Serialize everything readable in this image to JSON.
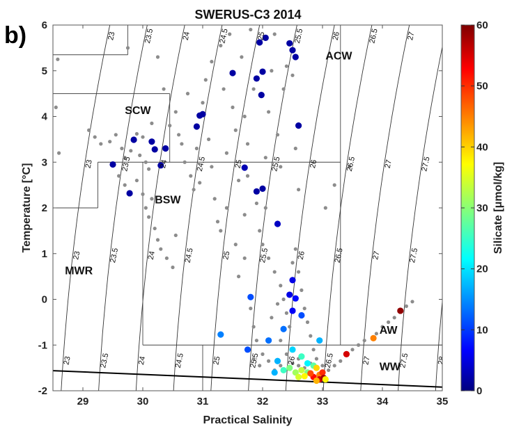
{
  "panel_label": "b)",
  "chart_data": {
    "type": "scatter",
    "title": "SWERUS-C3 2014",
    "xlabel": "Practical Salinity",
    "ylabel": "Temperature [°C]",
    "xlim": [
      28.5,
      35
    ],
    "ylim": [
      -2,
      6
    ],
    "x_ticks": [
      "29",
      "30",
      "31",
      "32",
      "33",
      "34",
      "35"
    ],
    "y_ticks": [
      "-2",
      "-1",
      "0",
      "1",
      "2",
      "3",
      "4",
      "5",
      "6"
    ],
    "colorbar": {
      "label": "Silicate [μmol/kg]",
      "range": [
        0,
        60
      ],
      "ticks": [
        "0",
        "10",
        "20",
        "30",
        "40",
        "50",
        "60"
      ],
      "colormap": "jet"
    },
    "isopycnals": [
      {
        "label": "23",
        "sigma": 23
      },
      {
        "label": "23.5",
        "sigma": 23.5
      },
      {
        "label": "24",
        "sigma": 24
      },
      {
        "label": "24.5",
        "sigma": 24.5
      },
      {
        "label": "25",
        "sigma": 25
      },
      {
        "label": "25.5",
        "sigma": 25.5
      },
      {
        "label": "26",
        "sigma": 26
      },
      {
        "label": "26.5",
        "sigma": 26.5
      },
      {
        "label": "27",
        "sigma": 27
      },
      {
        "label": "27.5",
        "sigma": 27.5
      },
      {
        "label": "28",
        "sigma": 28
      }
    ],
    "freezing_line": {
      "x": [
        28.5,
        35
      ],
      "y": [
        -1.56,
        -1.92
      ]
    },
    "water_mass_labels": [
      {
        "text": "ACW",
        "x": 33.05,
        "y": 5.25
      },
      {
        "text": "SCW",
        "x": 29.7,
        "y": 4.05
      },
      {
        "text": "BSW",
        "x": 30.2,
        "y": 2.1
      },
      {
        "text": "MWR",
        "x": 28.7,
        "y": 0.55
      },
      {
        "text": "AW",
        "x": 33.95,
        "y": -0.75
      },
      {
        "text": "WW",
        "x": 33.95,
        "y": -1.55
      }
    ],
    "colored_points": [
      {
        "x": 32.05,
        "y": 5.72,
        "si": 2
      },
      {
        "x": 31.95,
        "y": 5.62,
        "si": 2
      },
      {
        "x": 32.45,
        "y": 5.6,
        "si": 2
      },
      {
        "x": 32.5,
        "y": 5.45,
        "si": 2
      },
      {
        "x": 32.55,
        "y": 5.3,
        "si": 2
      },
      {
        "x": 32.0,
        "y": 4.98,
        "si": 2
      },
      {
        "x": 31.5,
        "y": 4.95,
        "si": 2
      },
      {
        "x": 31.9,
        "y": 4.83,
        "si": 2
      },
      {
        "x": 31.98,
        "y": 4.47,
        "si": 2
      },
      {
        "x": 31.0,
        "y": 4.05,
        "si": 2
      },
      {
        "x": 30.95,
        "y": 4.02,
        "si": 2
      },
      {
        "x": 32.6,
        "y": 3.8,
        "si": 2
      },
      {
        "x": 30.9,
        "y": 3.78,
        "si": 2
      },
      {
        "x": 29.85,
        "y": 3.49,
        "si": 2
      },
      {
        "x": 30.15,
        "y": 3.45,
        "si": 2
      },
      {
        "x": 30.2,
        "y": 3.28,
        "si": 2
      },
      {
        "x": 30.38,
        "y": 3.3,
        "si": 2
      },
      {
        "x": 29.5,
        "y": 2.95,
        "si": 2
      },
      {
        "x": 31.7,
        "y": 2.88,
        "si": 3
      },
      {
        "x": 30.3,
        "y": 2.93,
        "si": 2
      },
      {
        "x": 32.0,
        "y": 2.42,
        "si": 2
      },
      {
        "x": 31.9,
        "y": 2.36,
        "si": 2
      },
      {
        "x": 29.78,
        "y": 2.32,
        "si": 2
      },
      {
        "x": 32.25,
        "y": 1.65,
        "si": 4
      },
      {
        "x": 32.5,
        "y": 0.42,
        "si": 6
      },
      {
        "x": 32.45,
        "y": 0.1,
        "si": 6
      },
      {
        "x": 32.55,
        "y": 0.02,
        "si": 8
      },
      {
        "x": 31.8,
        "y": 0.05,
        "si": 12
      },
      {
        "x": 32.5,
        "y": -0.25,
        "si": 7
      },
      {
        "x": 32.65,
        "y": -0.35,
        "si": 12
      },
      {
        "x": 32.35,
        "y": -0.65,
        "si": 14
      },
      {
        "x": 31.3,
        "y": -0.77,
        "si": 15
      },
      {
        "x": 32.95,
        "y": -0.9,
        "si": 18
      },
      {
        "x": 32.1,
        "y": -0.9,
        "si": 14
      },
      {
        "x": 31.75,
        "y": -1.1,
        "si": 12
      },
      {
        "x": 32.5,
        "y": -1.1,
        "si": 20
      },
      {
        "x": 32.65,
        "y": -1.25,
        "si": 26
      },
      {
        "x": 32.25,
        "y": -1.35,
        "si": 18
      },
      {
        "x": 32.75,
        "y": -1.4,
        "si": 22
      },
      {
        "x": 32.85,
        "y": -1.45,
        "si": 28
      },
      {
        "x": 32.45,
        "y": -1.5,
        "si": 30
      },
      {
        "x": 32.35,
        "y": -1.55,
        "si": 26
      },
      {
        "x": 32.55,
        "y": -1.6,
        "si": 32
      },
      {
        "x": 32.2,
        "y": -1.6,
        "si": 18
      },
      {
        "x": 32.65,
        "y": -1.55,
        "si": 34
      },
      {
        "x": 32.75,
        "y": -1.6,
        "si": 30
      },
      {
        "x": 32.9,
        "y": -1.5,
        "si": 40
      },
      {
        "x": 32.95,
        "y": -1.65,
        "si": 45
      },
      {
        "x": 33.0,
        "y": -1.6,
        "si": 50
      },
      {
        "x": 32.85,
        "y": -1.7,
        "si": 52
      },
      {
        "x": 32.95,
        "y": -1.75,
        "si": 55
      },
      {
        "x": 33.02,
        "y": -1.72,
        "si": 58
      },
      {
        "x": 32.8,
        "y": -1.62,
        "si": 48
      },
      {
        "x": 32.7,
        "y": -1.68,
        "si": 38
      },
      {
        "x": 32.6,
        "y": -1.7,
        "si": 35
      },
      {
        "x": 32.9,
        "y": -1.78,
        "si": 42
      },
      {
        "x": 33.05,
        "y": -1.75,
        "si": 38
      },
      {
        "x": 33.4,
        "y": -1.2,
        "si": 55
      },
      {
        "x": 33.85,
        "y": -0.85,
        "si": 45
      },
      {
        "x": 34.3,
        "y": -0.25,
        "si": 59
      }
    ],
    "gray_points": [
      {
        "x": 28.55,
        "y": 4.2
      },
      {
        "x": 28.6,
        "y": 3.2
      },
      {
        "x": 28.58,
        "y": 5.25
      },
      {
        "x": 29.45,
        "y": 3.45
      },
      {
        "x": 29.55,
        "y": 3.6
      },
      {
        "x": 29.65,
        "y": 3.3
      },
      {
        "x": 29.7,
        "y": 3.1
      },
      {
        "x": 29.8,
        "y": 3.25
      },
      {
        "x": 29.9,
        "y": 3.62
      },
      {
        "x": 29.95,
        "y": 3.15
      },
      {
        "x": 30.0,
        "y": 3.55
      },
      {
        "x": 30.05,
        "y": 3.0
      },
      {
        "x": 30.1,
        "y": 2.85
      },
      {
        "x": 29.6,
        "y": 2.7
      },
      {
        "x": 29.7,
        "y": 2.5
      },
      {
        "x": 29.9,
        "y": 2.6
      },
      {
        "x": 30.0,
        "y": 2.3
      },
      {
        "x": 30.05,
        "y": 2.0
      },
      {
        "x": 30.1,
        "y": 1.8
      },
      {
        "x": 30.2,
        "y": 1.55
      },
      {
        "x": 30.25,
        "y": 1.3
      },
      {
        "x": 30.3,
        "y": 1.1
      },
      {
        "x": 30.15,
        "y": 2.2
      },
      {
        "x": 30.4,
        "y": 0.9
      },
      {
        "x": 30.5,
        "y": 0.7
      },
      {
        "x": 30.55,
        "y": 1.4
      },
      {
        "x": 30.6,
        "y": 3.6
      },
      {
        "x": 30.45,
        "y": 3.8
      },
      {
        "x": 30.55,
        "y": 4.1
      },
      {
        "x": 30.65,
        "y": 3.4
      },
      {
        "x": 30.7,
        "y": 3.0
      },
      {
        "x": 30.75,
        "y": 4.5
      },
      {
        "x": 30.8,
        "y": 2.7
      },
      {
        "x": 30.85,
        "y": 2.4
      },
      {
        "x": 30.9,
        "y": 3.3
      },
      {
        "x": 31.0,
        "y": 4.3
      },
      {
        "x": 31.05,
        "y": 4.8
      },
      {
        "x": 31.1,
        "y": 3.5
      },
      {
        "x": 31.15,
        "y": 5.2
      },
      {
        "x": 31.2,
        "y": 2.2
      },
      {
        "x": 31.25,
        "y": 1.7
      },
      {
        "x": 31.3,
        "y": 5.55
      },
      {
        "x": 31.35,
        "y": 4.6
      },
      {
        "x": 31.4,
        "y": 3.2
      },
      {
        "x": 31.45,
        "y": 5.8
      },
      {
        "x": 31.5,
        "y": 4.2
      },
      {
        "x": 31.55,
        "y": 3.7
      },
      {
        "x": 31.6,
        "y": 2.6
      },
      {
        "x": 31.65,
        "y": 5.3
      },
      {
        "x": 31.7,
        "y": 4.0
      },
      {
        "x": 31.75,
        "y": 3.4
      },
      {
        "x": 31.8,
        "y": 5.9
      },
      {
        "x": 31.85,
        "y": 4.6
      },
      {
        "x": 31.9,
        "y": 2.1
      },
      {
        "x": 31.95,
        "y": 1.5
      },
      {
        "x": 32.05,
        "y": 3.1
      },
      {
        "x": 32.1,
        "y": 4.1
      },
      {
        "x": 32.15,
        "y": 5.0
      },
      {
        "x": 32.2,
        "y": 5.8
      },
      {
        "x": 32.25,
        "y": 3.6
      },
      {
        "x": 32.3,
        "y": 2.9
      },
      {
        "x": 32.35,
        "y": 4.6
      },
      {
        "x": 32.4,
        "y": 5.1
      },
      {
        "x": 32.5,
        "y": 4.9
      },
      {
        "x": 32.55,
        "y": 3.3
      },
      {
        "x": 32.6,
        "y": 2.4
      },
      {
        "x": 32.0,
        "y": 1.2
      },
      {
        "x": 32.1,
        "y": 0.9
      },
      {
        "x": 32.2,
        "y": 0.6
      },
      {
        "x": 32.3,
        "y": 0.3
      },
      {
        "x": 32.35,
        "y": 0.0
      },
      {
        "x": 32.4,
        "y": -0.3
      },
      {
        "x": 32.45,
        "y": -0.6
      },
      {
        "x": 32.5,
        "y": 0.8
      },
      {
        "x": 32.55,
        "y": 1.1
      },
      {
        "x": 32.6,
        "y": 0.6
      },
      {
        "x": 32.65,
        "y": 0.2
      },
      {
        "x": 32.7,
        "y": -0.2
      },
      {
        "x": 32.75,
        "y": -0.5
      },
      {
        "x": 32.8,
        "y": -0.8
      },
      {
        "x": 32.85,
        "y": -1.1
      },
      {
        "x": 31.8,
        "y": -0.2
      },
      {
        "x": 31.85,
        "y": -0.6
      },
      {
        "x": 31.9,
        "y": -0.9
      },
      {
        "x": 32.0,
        "y": -1.2
      },
      {
        "x": 32.1,
        "y": -1.35
      },
      {
        "x": 31.6,
        "y": 0.5
      },
      {
        "x": 31.7,
        "y": 0.9
      },
      {
        "x": 32.15,
        "y": -0.4
      },
      {
        "x": 32.25,
        "y": -0.1
      },
      {
        "x": 32.3,
        "y": -0.9
      },
      {
        "x": 32.4,
        "y": -1.2
      },
      {
        "x": 32.5,
        "y": -1.4
      },
      {
        "x": 32.6,
        "y": -1.3
      },
      {
        "x": 32.7,
        "y": -1.5
      },
      {
        "x": 32.9,
        "y": -1.3
      },
      {
        "x": 33.0,
        "y": -1.45
      },
      {
        "x": 33.1,
        "y": -1.55
      },
      {
        "x": 33.2,
        "y": -1.45
      },
      {
        "x": 33.3,
        "y": -1.35
      },
      {
        "x": 33.5,
        "y": -1.1
      },
      {
        "x": 33.6,
        "y": -1.0
      },
      {
        "x": 33.7,
        "y": -0.9
      },
      {
        "x": 33.9,
        "y": -0.75
      },
      {
        "x": 34.0,
        "y": -0.6
      },
      {
        "x": 34.1,
        "y": -0.5
      },
      {
        "x": 34.2,
        "y": -0.4
      },
      {
        "x": 34.4,
        "y": -0.15
      },
      {
        "x": 34.5,
        "y": -0.05
      },
      {
        "x": 33.45,
        "y": 2.9
      },
      {
        "x": 33.05,
        "y": 2.0
      },
      {
        "x": 33.2,
        "y": 2.5
      },
      {
        "x": 30.35,
        "y": 4.6
      },
      {
        "x": 30.25,
        "y": 5.3
      },
      {
        "x": 29.75,
        "y": 5.5
      },
      {
        "x": 30.15,
        "y": 3.85
      },
      {
        "x": 29.3,
        "y": 3.4
      },
      {
        "x": 29.2,
        "y": 3.55
      },
      {
        "x": 29.1,
        "y": 3.7
      },
      {
        "x": 31.55,
        "y": 1.2
      },
      {
        "x": 31.4,
        "y": 2.0
      },
      {
        "x": 31.15,
        "y": 2.9
      },
      {
        "x": 30.95,
        "y": 2.55
      },
      {
        "x": 31.3,
        "y": 1.5
      },
      {
        "x": 32.2,
        "y": -1.55
      },
      {
        "x": 32.3,
        "y": -1.45
      },
      {
        "x": 32.6,
        "y": -1.45
      },
      {
        "x": 32.8,
        "y": -1.4
      },
      {
        "x": 31.95,
        "y": -1.45
      },
      {
        "x": 31.85,
        "y": -1.3
      },
      {
        "x": 31.7,
        "y": 1.85
      },
      {
        "x": 31.75,
        "y": 2.7
      },
      {
        "x": 32.05,
        "y": 2.0
      }
    ]
  }
}
